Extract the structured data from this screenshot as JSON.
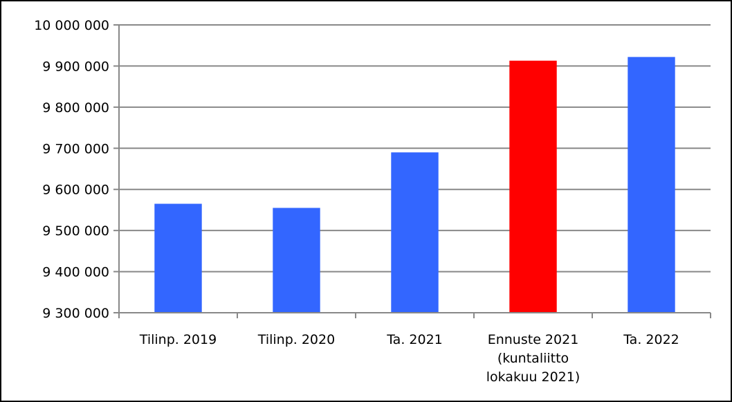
{
  "chart_data": {
    "type": "bar",
    "title": "",
    "xlabel": "",
    "ylabel": "",
    "ylim": [
      9300000,
      10000000
    ],
    "y_ticks": [
      {
        "value": 9300000,
        "label": "9 300 000"
      },
      {
        "value": 9400000,
        "label": "9 400 000"
      },
      {
        "value": 9500000,
        "label": "9 500 000"
      },
      {
        "value": 9600000,
        "label": "9 600 000"
      },
      {
        "value": 9700000,
        "label": "9 700 000"
      },
      {
        "value": 9800000,
        "label": "9 800 000"
      },
      {
        "value": 9900000,
        "label": "9 900 000"
      },
      {
        "value": 10000000,
        "label": "10 000 000"
      }
    ],
    "grid": true,
    "legend": "none",
    "categories": [
      {
        "lines": [
          "Tilinp. 2019"
        ]
      },
      {
        "lines": [
          "Tilinp. 2020"
        ]
      },
      {
        "lines": [
          "Ta. 2021"
        ]
      },
      {
        "lines": [
          "Ennuste 2021",
          "(kuntaliitto",
          "lokakuu 2021)"
        ]
      },
      {
        "lines": [
          "Ta. 2022"
        ]
      }
    ],
    "values": [
      9565000,
      9555000,
      9690000,
      9913000,
      9922000
    ],
    "colors": [
      "#3366FF",
      "#3366FF",
      "#3366FF",
      "#FF0000",
      "#3366FF"
    ]
  }
}
